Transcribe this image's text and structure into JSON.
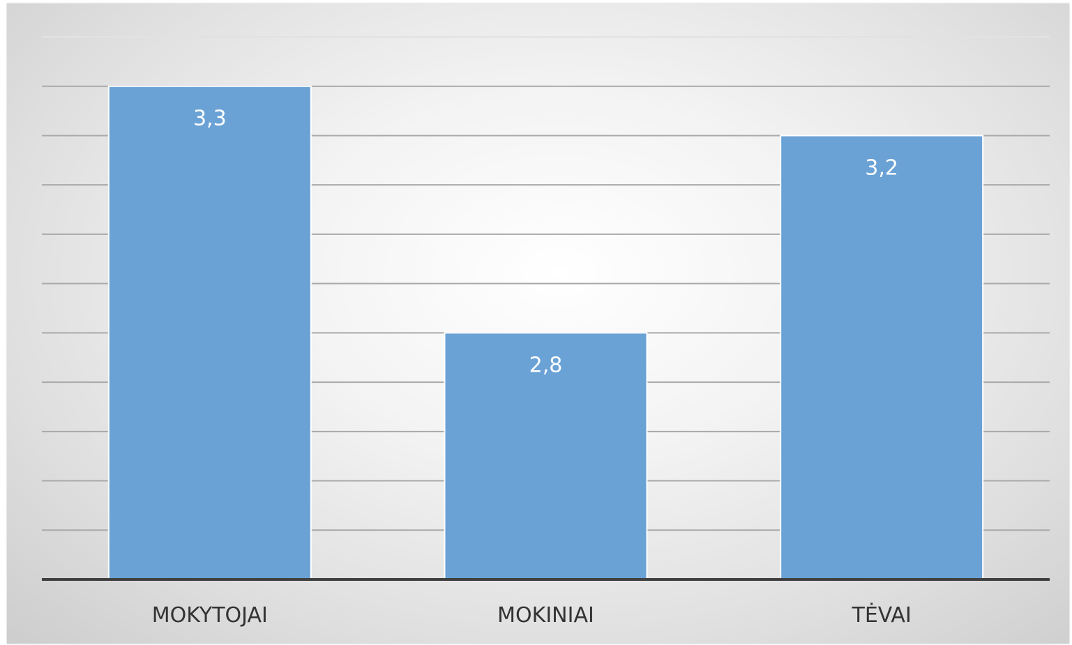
{
  "chart_data": {
    "type": "bar",
    "categories": [
      "MOKYTOJAI",
      "MOKINIAI",
      "TĖVAI"
    ],
    "values": [
      3.3,
      2.8,
      3.2
    ],
    "data_labels": [
      "3,3",
      "2,8",
      "3,2"
    ],
    "title": "",
    "xlabel": "",
    "ylabel": "",
    "ylim": [
      2.3,
      3.4
    ],
    "grid_step": 0.1,
    "grid": true,
    "legend": "none",
    "colors": {
      "bar": "#6aa2d6",
      "bar_border": "#ffffff",
      "gridline": "#a9a9a9",
      "axis": "#404040",
      "data_label": "#ffffff",
      "tick_label": "#333333"
    }
  }
}
